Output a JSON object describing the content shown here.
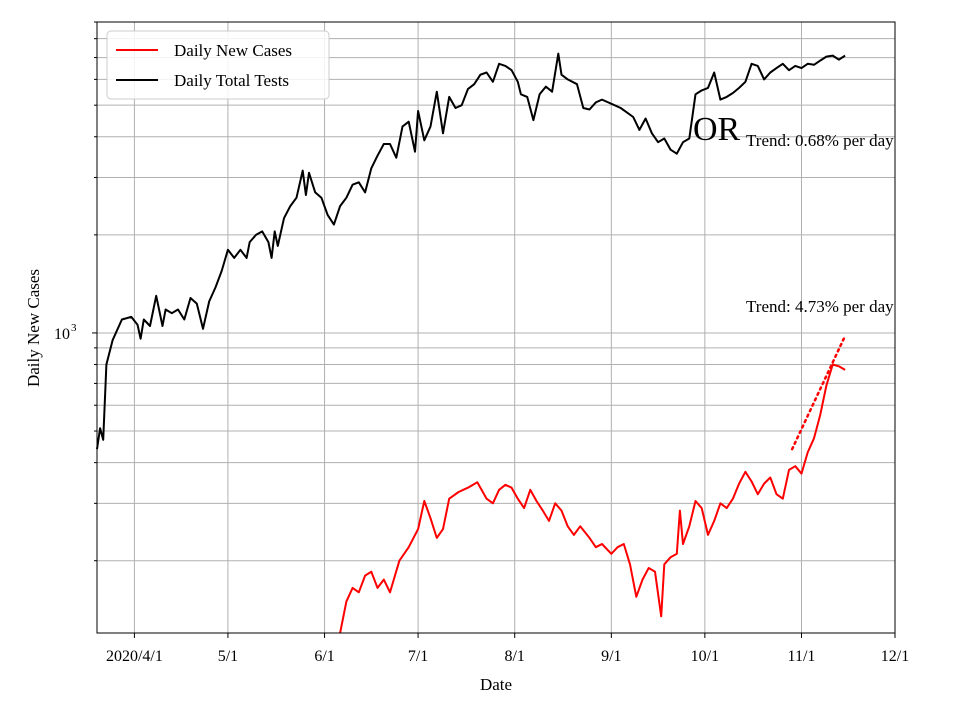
{
  "chart_data": {
    "type": "line",
    "xlabel": "Date",
    "ylabel": "Daily New Cases",
    "y_scale": "log",
    "grid": true,
    "legend_placement": "top-left",
    "x_range": [
      "2020-03-20",
      "2020-12-01"
    ],
    "y_range": [
      120,
      9000
    ],
    "x_ticks": [
      {
        "date": "2020-04-01",
        "label": "2020/4/1"
      },
      {
        "date": "2020-05-01",
        "label": "5/1"
      },
      {
        "date": "2020-06-01",
        "label": "6/1"
      },
      {
        "date": "2020-07-01",
        "label": "7/1"
      },
      {
        "date": "2020-08-01",
        "label": "8/1"
      },
      {
        "date": "2020-09-01",
        "label": "9/1"
      },
      {
        "date": "2020-10-01",
        "label": "10/1"
      },
      {
        "date": "2020-11-01",
        "label": "11/1"
      },
      {
        "date": "2020-12-01",
        "label": "12/1"
      }
    ],
    "y_major_tick": {
      "value": 1000,
      "label": "10",
      "exponent": "3"
    },
    "state_label": "OR",
    "series": [
      {
        "name": "Daily New Cases",
        "color": "#ff0000",
        "points": [
          [
            "2020-06-06",
            120
          ],
          [
            "2020-06-08",
            150
          ],
          [
            "2020-06-10",
            165
          ],
          [
            "2020-06-12",
            160
          ],
          [
            "2020-06-14",
            180
          ],
          [
            "2020-06-16",
            185
          ],
          [
            "2020-06-18",
            165
          ],
          [
            "2020-06-20",
            175
          ],
          [
            "2020-06-22",
            160
          ],
          [
            "2020-06-25",
            200
          ],
          [
            "2020-06-28",
            220
          ],
          [
            "2020-07-01",
            250
          ],
          [
            "2020-07-03",
            305
          ],
          [
            "2020-07-05",
            270
          ],
          [
            "2020-07-07",
            235
          ],
          [
            "2020-07-09",
            250
          ],
          [
            "2020-07-11",
            310
          ],
          [
            "2020-07-14",
            325
          ],
          [
            "2020-07-17",
            335
          ],
          [
            "2020-07-20",
            348
          ],
          [
            "2020-07-23",
            310
          ],
          [
            "2020-07-25",
            300
          ],
          [
            "2020-07-27",
            330
          ],
          [
            "2020-07-29",
            342
          ],
          [
            "2020-07-31",
            335
          ],
          [
            "2020-08-02",
            310
          ],
          [
            "2020-08-04",
            290
          ],
          [
            "2020-08-06",
            330
          ],
          [
            "2020-08-08",
            305
          ],
          [
            "2020-08-10",
            285
          ],
          [
            "2020-08-12",
            265
          ],
          [
            "2020-08-14",
            300
          ],
          [
            "2020-08-16",
            285
          ],
          [
            "2020-08-18",
            255
          ],
          [
            "2020-08-20",
            240
          ],
          [
            "2020-08-22",
            255
          ],
          [
            "2020-08-25",
            235
          ],
          [
            "2020-08-27",
            220
          ],
          [
            "2020-08-29",
            225
          ],
          [
            "2020-09-01",
            210
          ],
          [
            "2020-09-03",
            220
          ],
          [
            "2020-09-05",
            225
          ],
          [
            "2020-09-07",
            195
          ],
          [
            "2020-09-09",
            155
          ],
          [
            "2020-09-11",
            175
          ],
          [
            "2020-09-13",
            190
          ],
          [
            "2020-09-15",
            185
          ],
          [
            "2020-09-17",
            135
          ],
          [
            "2020-09-18",
            195
          ],
          [
            "2020-09-20",
            205
          ],
          [
            "2020-09-22",
            210
          ],
          [
            "2020-09-23",
            285
          ],
          [
            "2020-09-24",
            225
          ],
          [
            "2020-09-26",
            255
          ],
          [
            "2020-09-28",
            305
          ],
          [
            "2020-09-30",
            290
          ],
          [
            "2020-10-02",
            240
          ],
          [
            "2020-10-04",
            265
          ],
          [
            "2020-10-06",
            300
          ],
          [
            "2020-10-08",
            290
          ],
          [
            "2020-10-10",
            310
          ],
          [
            "2020-10-12",
            345
          ],
          [
            "2020-10-14",
            375
          ],
          [
            "2020-10-16",
            350
          ],
          [
            "2020-10-18",
            320
          ],
          [
            "2020-10-20",
            345
          ],
          [
            "2020-10-22",
            360
          ],
          [
            "2020-10-24",
            320
          ],
          [
            "2020-10-26",
            310
          ],
          [
            "2020-10-28",
            380
          ],
          [
            "2020-10-30",
            390
          ],
          [
            "2020-11-01",
            370
          ],
          [
            "2020-11-03",
            430
          ],
          [
            "2020-11-05",
            475
          ],
          [
            "2020-11-07",
            560
          ],
          [
            "2020-11-09",
            690
          ],
          [
            "2020-11-11",
            800
          ],
          [
            "2020-11-13",
            790
          ],
          [
            "2020-11-15",
            770
          ]
        ]
      },
      {
        "name": "Daily Total Tests",
        "color": "#000000",
        "points": [
          [
            "2020-03-20",
            440
          ],
          [
            "2020-03-21",
            510
          ],
          [
            "2020-03-22",
            470
          ],
          [
            "2020-03-23",
            800
          ],
          [
            "2020-03-25",
            950
          ],
          [
            "2020-03-28",
            1100
          ],
          [
            "2020-03-31",
            1120
          ],
          [
            "2020-04-02",
            1060
          ],
          [
            "2020-04-03",
            960
          ],
          [
            "2020-04-04",
            1100
          ],
          [
            "2020-04-06",
            1050
          ],
          [
            "2020-04-08",
            1300
          ],
          [
            "2020-04-10",
            1050
          ],
          [
            "2020-04-11",
            1180
          ],
          [
            "2020-04-13",
            1150
          ],
          [
            "2020-04-15",
            1180
          ],
          [
            "2020-04-17",
            1100
          ],
          [
            "2020-04-19",
            1280
          ],
          [
            "2020-04-21",
            1230
          ],
          [
            "2020-04-23",
            1030
          ],
          [
            "2020-04-25",
            1250
          ],
          [
            "2020-04-27",
            1380
          ],
          [
            "2020-04-29",
            1550
          ],
          [
            "2020-05-01",
            1800
          ],
          [
            "2020-05-03",
            1700
          ],
          [
            "2020-05-05",
            1800
          ],
          [
            "2020-05-07",
            1700
          ],
          [
            "2020-05-08",
            1900
          ],
          [
            "2020-05-10",
            2000
          ],
          [
            "2020-05-12",
            2050
          ],
          [
            "2020-05-14",
            1900
          ],
          [
            "2020-05-15",
            1700
          ],
          [
            "2020-05-16",
            2050
          ],
          [
            "2020-05-17",
            1850
          ],
          [
            "2020-05-19",
            2250
          ],
          [
            "2020-05-21",
            2450
          ],
          [
            "2020-05-23",
            2600
          ],
          [
            "2020-05-25",
            3150
          ],
          [
            "2020-05-26",
            2650
          ],
          [
            "2020-05-27",
            3100
          ],
          [
            "2020-05-29",
            2700
          ],
          [
            "2020-05-31",
            2600
          ],
          [
            "2020-06-02",
            2300
          ],
          [
            "2020-06-04",
            2150
          ],
          [
            "2020-06-06",
            2450
          ],
          [
            "2020-06-08",
            2600
          ],
          [
            "2020-06-10",
            2850
          ],
          [
            "2020-06-12",
            2900
          ],
          [
            "2020-06-14",
            2700
          ],
          [
            "2020-06-16",
            3200
          ],
          [
            "2020-06-18",
            3500
          ],
          [
            "2020-06-20",
            3800
          ],
          [
            "2020-06-22",
            3800
          ],
          [
            "2020-06-24",
            3450
          ],
          [
            "2020-06-26",
            4300
          ],
          [
            "2020-06-28",
            4450
          ],
          [
            "2020-06-30",
            3600
          ],
          [
            "2020-07-01",
            4800
          ],
          [
            "2020-07-03",
            3900
          ],
          [
            "2020-07-05",
            4300
          ],
          [
            "2020-07-07",
            5500
          ],
          [
            "2020-07-09",
            4100
          ],
          [
            "2020-07-11",
            5300
          ],
          [
            "2020-07-13",
            4900
          ],
          [
            "2020-07-15",
            5000
          ],
          [
            "2020-07-17",
            5600
          ],
          [
            "2020-07-19",
            5800
          ],
          [
            "2020-07-21",
            6200
          ],
          [
            "2020-07-23",
            6300
          ],
          [
            "2020-07-25",
            5900
          ],
          [
            "2020-07-27",
            6700
          ],
          [
            "2020-07-29",
            6600
          ],
          [
            "2020-07-31",
            6400
          ],
          [
            "2020-08-02",
            5900
          ],
          [
            "2020-08-03",
            5400
          ],
          [
            "2020-08-05",
            5300
          ],
          [
            "2020-08-07",
            4500
          ],
          [
            "2020-08-09",
            5400
          ],
          [
            "2020-08-11",
            5700
          ],
          [
            "2020-08-13",
            5500
          ],
          [
            "2020-08-15",
            7200
          ],
          [
            "2020-08-16",
            6200
          ],
          [
            "2020-08-18",
            6000
          ],
          [
            "2020-08-21",
            5800
          ],
          [
            "2020-08-23",
            4900
          ],
          [
            "2020-08-25",
            4850
          ],
          [
            "2020-08-27",
            5100
          ],
          [
            "2020-08-29",
            5200
          ],
          [
            "2020-08-31",
            5100
          ],
          [
            "2020-09-02",
            5000
          ],
          [
            "2020-09-04",
            4900
          ],
          [
            "2020-09-06",
            4750
          ],
          [
            "2020-09-08",
            4600
          ],
          [
            "2020-09-10",
            4200
          ],
          [
            "2020-09-12",
            4550
          ],
          [
            "2020-09-14",
            4100
          ],
          [
            "2020-09-16",
            3850
          ],
          [
            "2020-09-18",
            3950
          ],
          [
            "2020-09-20",
            3650
          ],
          [
            "2020-09-22",
            3550
          ],
          [
            "2020-09-24",
            3850
          ],
          [
            "2020-09-26",
            3950
          ],
          [
            "2020-09-28",
            5400
          ],
          [
            "2020-09-30",
            5550
          ],
          [
            "2020-10-02",
            5650
          ],
          [
            "2020-10-04",
            6300
          ],
          [
            "2020-10-06",
            5200
          ],
          [
            "2020-10-08",
            5300
          ],
          [
            "2020-10-10",
            5450
          ],
          [
            "2020-10-12",
            5650
          ],
          [
            "2020-10-14",
            5900
          ],
          [
            "2020-10-16",
            6700
          ],
          [
            "2020-10-18",
            6600
          ],
          [
            "2020-10-20",
            6000
          ],
          [
            "2020-10-22",
            6300
          ],
          [
            "2020-10-24",
            6500
          ],
          [
            "2020-10-26",
            6700
          ],
          [
            "2020-10-28",
            6400
          ],
          [
            "2020-10-30",
            6600
          ],
          [
            "2020-11-01",
            6500
          ],
          [
            "2020-11-03",
            6700
          ],
          [
            "2020-11-05",
            6650
          ],
          [
            "2020-11-07",
            6850
          ],
          [
            "2020-11-09",
            7050
          ],
          [
            "2020-11-11",
            7100
          ],
          [
            "2020-11-13",
            6900
          ],
          [
            "2020-11-15",
            7100
          ]
        ]
      }
    ],
    "trends": [
      {
        "text": "Trend: 0.68% per day",
        "series": "Daily Total Tests"
      },
      {
        "text": "Trend: 4.73% per day",
        "series": "Daily New Cases",
        "color": "#ff0000",
        "line": [
          [
            "2020-10-29",
            440
          ],
          [
            "2020-11-15",
            980
          ]
        ]
      }
    ]
  }
}
